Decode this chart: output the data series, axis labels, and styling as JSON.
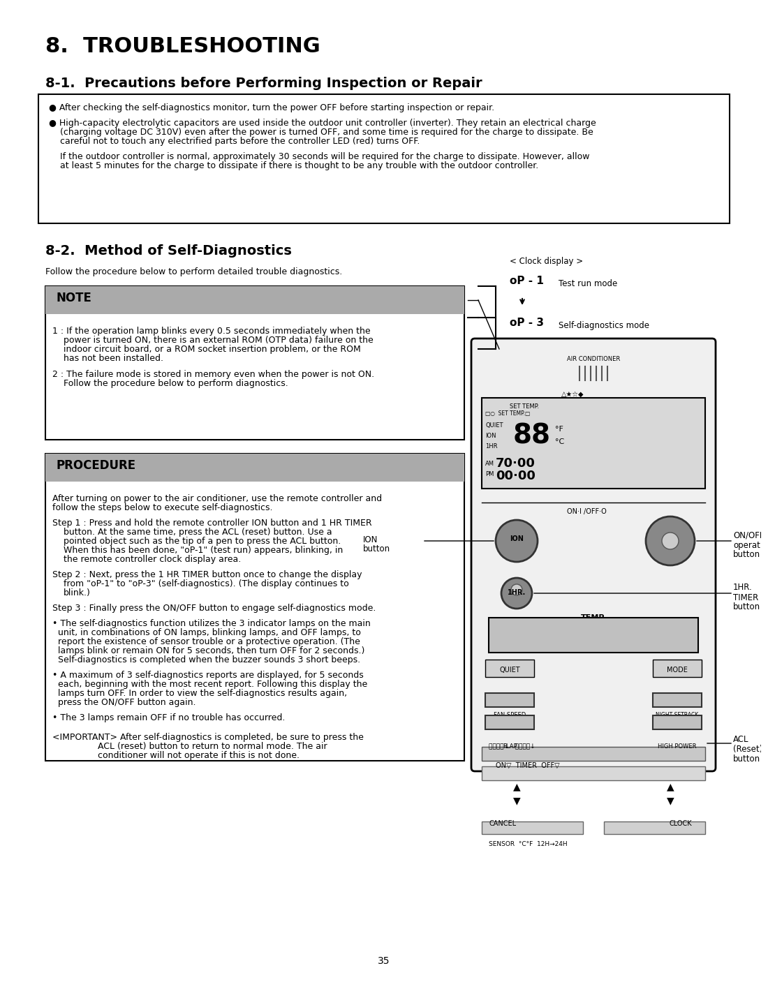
{
  "page_number": "35",
  "bg_color": "#ffffff",
  "text_color": "#000000",
  "section_title": "8.  TROUBLESHOOTING",
  "subsection1_title": "8-1.  Precautions before Performing Inspection or Repair",
  "box1_bullet1": "● After checking the self-diagnostics monitor, turn the power OFF before starting inspection or repair.",
  "box1_bullet2": "● High-capacity electrolytic capacitors are used inside the outdoor unit controller (inverter). They retain an electrical charge\n    (charging voltage DC 310V) even after the power is turned OFF, and some time is required for the charge to dissipate. Be\n    careful not to touch any electrified parts before the controller LED (red) turns OFF.",
  "box1_para": "    If the outdoor controller is normal, approximately 30 seconds will be required for the charge to dissipate. However, allow\n    at least 5 minutes for the charge to dissipate if there is thought to be any trouble with the outdoor controller.",
  "subsection2_title": "8-2.  Method of Self-Diagnostics",
  "subsection2_intro": "Follow the procedure below to perform detailed trouble diagnostics.",
  "note_header": "NOTE",
  "note_text1": "1 : If the operation lamp blinks every 0.5 seconds immediately when the\n    power is turned ON, there is an external ROM (OTP data) failure on the\n    indoor circuit board, or a ROM socket insertion problem, or the ROM\n    has not been installed.",
  "note_text2": "2 : The failure mode is stored in memory even when the power is not ON.\n    Follow the procedure below to perform diagnostics.",
  "procedure_header": "PROCEDURE",
  "procedure_intro": "After turning on power to the air conditioner, use the remote controller and\nfollow the steps below to execute self-diagnostics.",
  "step1": "Step 1 : Press and hold the remote controller ION button and 1 HR TIMER\n        button. At the same time, press the ACL (reset) button. Use a\n        pointed object such as the tip of a pen to press the ACL button.\n        When this has been done, \"oP-1\" (test run) appears, blinking, in\n        the remote controller clock display area.",
  "step2": "Step 2 : Next, press the 1 HR TIMER button once to change the display\n        from \"oP-1\" to \"oP-3\" (self-diagnostics). (The display continues to\n        blink.)",
  "step3": "Step 3 : Finally press the ON/OFF button to engage self-diagnostics mode.",
  "bullet_self": "• The self-diagnostics function utilizes the 3 indicator lamps on the main\n  unit, in combinations of ON lamps, blinking lamps, and OFF lamps, to\n  report the existence of sensor trouble or a protective operation. (The\n  lamps blink or remain ON for 5 seconds, then turn OFF for 2 seconds.)\n  Self-diagnostics is completed when the buzzer sounds 3 short beeps.",
  "bullet_max": "• A maximum of 3 self-diagnostics reports are displayed, for 5 seconds\n  each, beginning with the most recent report. Following this display the\n  lamps turn OFF. In order to view the self-diagnostics results again,\n  press the ON/OFF button again.",
  "bullet_remain": "• The 3 lamps remain OFF if no trouble has occurred.",
  "important": "<IMPORTANT> After self-diagnostics is completed, be sure to press the\n        ACL (reset) button to return to normal mode. The air\n        conditioner will not operate if this is not done.",
  "clock_display": "< Clock display >",
  "test_run_label": "Test run mode",
  "self_diag_label": "Self-diagnostics mode",
  "ion_button_label": "ION\nbutton",
  "ion_label": "ION",
  "on_off_label": "ON/OFF\noperation\nbutton",
  "on_off_switch": "ON·I /OFF·O",
  "timer_label": "1HR.\nTIMER\nbutton",
  "hr_label": "1HR.",
  "temp_label": "TEMP.",
  "acl_label": "ACL\n(Reset)\nbutton",
  "note_bg": "#cccccc",
  "procedure_bg": "#cccccc",
  "box_border": "#000000"
}
